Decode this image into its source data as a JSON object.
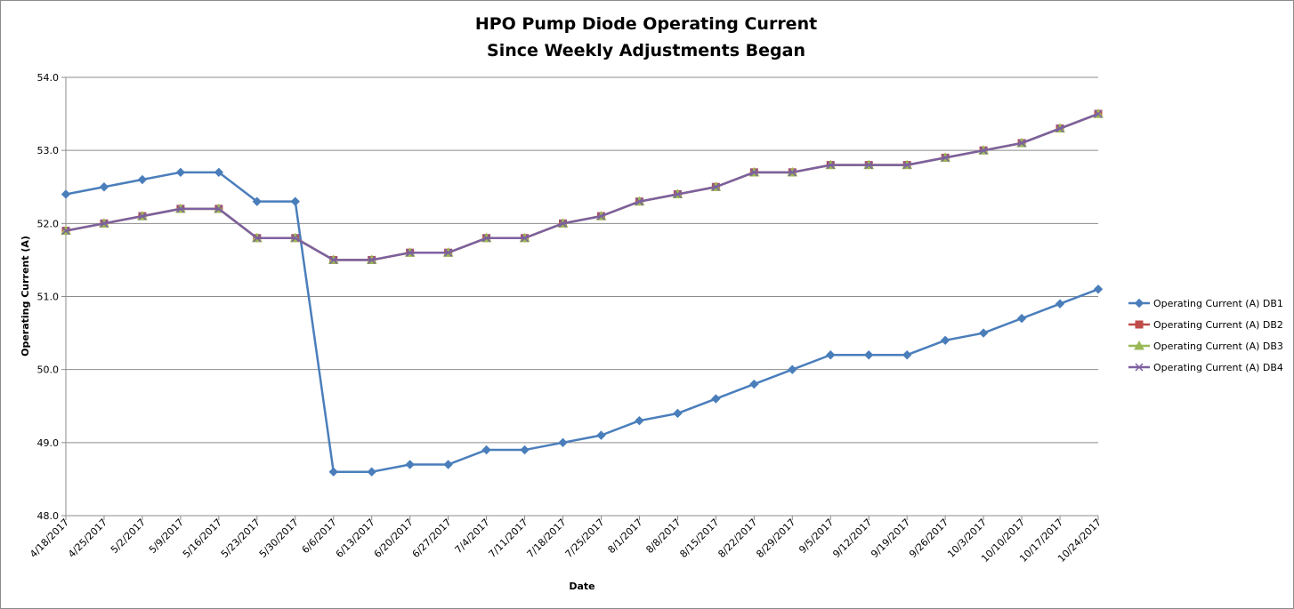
{
  "chart_data": {
    "type": "line",
    "title": [
      "HPO Pump Diode Operating Current",
      "Since Weekly Adjustments Began"
    ],
    "xlabel": "Date",
    "ylabel": "Operating Current (A)",
    "ylim": [
      48.0,
      54.0
    ],
    "y_ticks": [
      "48.0",
      "49.0",
      "50.0",
      "51.0",
      "52.0",
      "53.0",
      "54.0"
    ],
    "grid": "horizontal",
    "legend_position": "right",
    "categories": [
      "4/18/2017",
      "4/25/2017",
      "5/2/2017",
      "5/9/2017",
      "5/16/2017",
      "5/23/2017",
      "5/30/2017",
      "6/6/2017",
      "6/13/2017",
      "6/20/2017",
      "6/27/2017",
      "7/4/2017",
      "7/11/2017",
      "7/18/2017",
      "7/25/2017",
      "8/1/2017",
      "8/8/2017",
      "8/15/2017",
      "8/22/2017",
      "8/29/2017",
      "9/5/2017",
      "9/12/2017",
      "9/19/2017",
      "9/26/2017",
      "10/3/2017",
      "10/10/2017",
      "10/17/2017",
      "10/24/2017"
    ],
    "series": [
      {
        "name": "Operating Current (A) DB1",
        "color": "#4a7ebb",
        "marker": "diamond",
        "values": [
          52.4,
          52.5,
          52.6,
          52.7,
          52.7,
          52.3,
          52.3,
          48.6,
          48.6,
          48.7,
          48.7,
          48.9,
          48.9,
          49.0,
          49.1,
          49.3,
          49.4,
          49.6,
          49.8,
          50.0,
          50.2,
          50.2,
          50.2,
          50.4,
          50.5,
          50.7,
          50.9,
          51.1
        ]
      },
      {
        "name": "Operating Current (A) DB2",
        "color": "#be4b48",
        "marker": "square",
        "values": [
          51.9,
          52.0,
          52.1,
          52.2,
          52.2,
          51.8,
          51.8,
          51.5,
          51.5,
          51.6,
          51.6,
          51.8,
          51.8,
          52.0,
          52.1,
          52.3,
          52.4,
          52.5,
          52.7,
          52.7,
          52.8,
          52.8,
          52.8,
          52.9,
          53.0,
          53.1,
          53.3,
          53.5
        ]
      },
      {
        "name": "Operating Current (A) DB3",
        "color": "#98b954",
        "marker": "triangle",
        "values": [
          51.9,
          52.0,
          52.1,
          52.2,
          52.2,
          51.8,
          51.8,
          51.5,
          51.5,
          51.6,
          51.6,
          51.8,
          51.8,
          52.0,
          52.1,
          52.3,
          52.4,
          52.5,
          52.7,
          52.7,
          52.8,
          52.8,
          52.8,
          52.9,
          53.0,
          53.1,
          53.3,
          53.5
        ]
      },
      {
        "name": "Operating Current (A) DB4",
        "color": "#7d60a0",
        "marker": "x",
        "values": [
          51.9,
          52.0,
          52.1,
          52.2,
          52.2,
          51.8,
          51.8,
          51.5,
          51.5,
          51.6,
          51.6,
          51.8,
          51.8,
          52.0,
          52.1,
          52.3,
          52.4,
          52.5,
          52.7,
          52.7,
          52.8,
          52.8,
          52.8,
          52.9,
          53.0,
          53.1,
          53.3,
          53.5
        ]
      }
    ]
  }
}
